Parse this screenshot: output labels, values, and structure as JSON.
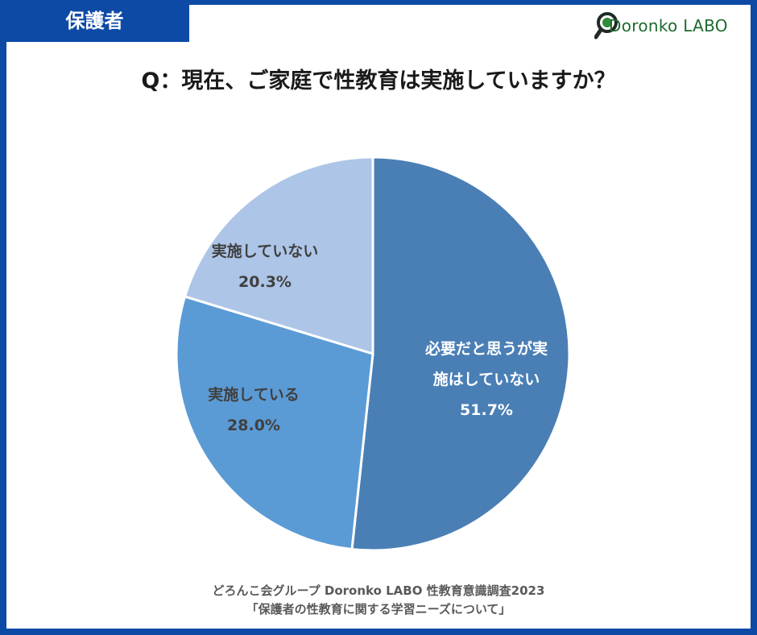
{
  "badge": "保護者",
  "logo": {
    "text": "Doronko LABO",
    "icon": "magnifier-icon",
    "color": "#1e6b2f"
  },
  "question": "Q：現在、ご家庭で性教育は実施していますか？",
  "source": {
    "line1": "どろんこ会グループ Doronko LABO 性教育意識調査2023",
    "line2": "「保護者の性教育に関する学習ニーズについて」"
  },
  "chart_data": {
    "type": "pie",
    "start": "12 o'clock, clockwise",
    "slices": [
      {
        "label_lines": [
          "必要だと思うが実",
          "施はしていない"
        ],
        "value": 51.7,
        "value_label": "51.7%",
        "color": "#4a7fb5",
        "text_color": "#ffffff"
      },
      {
        "label_lines": [
          "実施している"
        ],
        "value": 28.0,
        "value_label": "28.0%",
        "color": "#5b9bd5",
        "text_color": "#404040"
      },
      {
        "label_lines": [
          "実施していない"
        ],
        "value": 20.3,
        "value_label": "20.3%",
        "color": "#adc5e7",
        "text_color": "#404040"
      }
    ]
  }
}
